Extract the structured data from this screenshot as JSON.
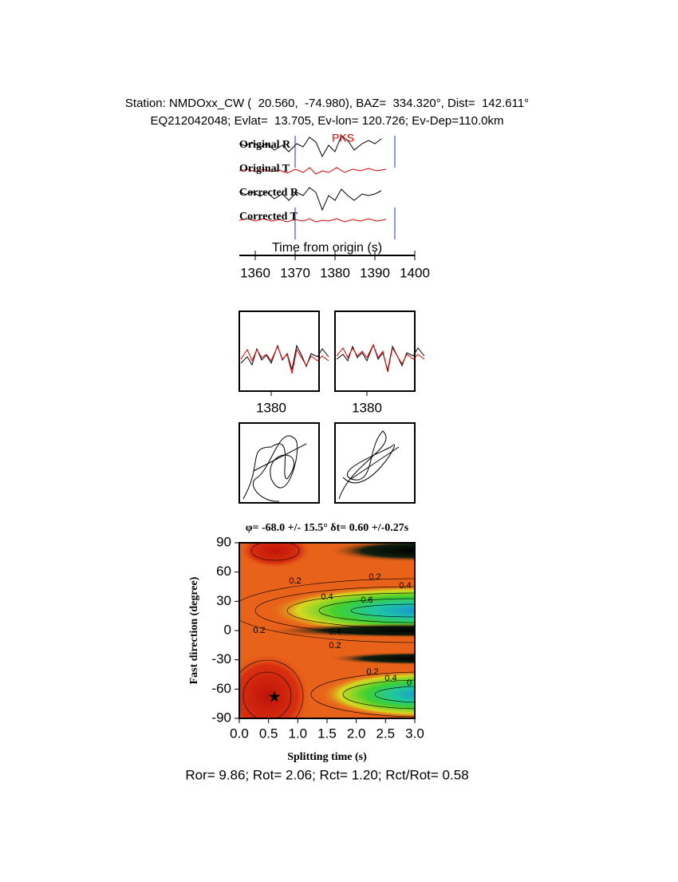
{
  "header": {
    "line1": "Station: NMDOxx_CW (  20.560,  -74.980), BAZ=  334.320°, Dist=  142.611°",
    "line2": "EQ212042048; Evlat=  13.705, Ev-lon= 120.726; Ev-Dep=110.0km"
  },
  "traces": {
    "labels": [
      "Original R",
      "Original T",
      "Corrected R",
      "Corrected T"
    ],
    "phase": "PKS",
    "xlabel": "Time from origin (s)",
    "xlim": [
      1356,
      1400
    ],
    "xticks": [
      1360,
      1370,
      1380,
      1390,
      1400
    ],
    "time_window": [
      1370,
      1395
    ]
  },
  "windows": {
    "xticks": [
      1380,
      1380
    ]
  },
  "chart_data": {
    "type": "contour",
    "title": "φ= -68.0 +/- 15.5° δt= 0.60 +/-0.27s",
    "xlabel": "Splitting time (s)",
    "ylabel": "Fast direction (degree)",
    "xlim": [
      0,
      3
    ],
    "ylim": [
      -90,
      90
    ],
    "xticks": [
      {
        "value": 0,
        "label": "0.0"
      },
      0.5,
      {
        "value": 1,
        "label": "1.0"
      },
      1.5,
      {
        "value": 2,
        "label": "2.0"
      },
      2.5,
      {
        "value": 3,
        "label": "3.0"
      }
    ],
    "yticks": [
      90,
      60,
      30,
      0,
      -30,
      -60,
      -90
    ],
    "best": {
      "x": 0.6,
      "y": -68
    },
    "contour_labels": [
      0.2,
      0.2,
      0.4,
      0.4,
      0.6,
      0.2,
      0.4,
      0.2,
      0.2,
      0.4,
      0
    ],
    "footer": "Ror= 9.86; Rot= 2.06; Rct= 1.20; Rct/Rot= 0.58"
  }
}
